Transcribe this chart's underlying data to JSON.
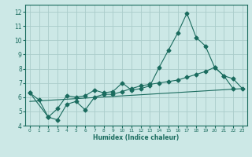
{
  "xlabel": "Humidex (Indice chaleur)",
  "bg_color": "#cce8e6",
  "grid_color": "#aaccca",
  "line_color": "#1a6b5e",
  "xlim": [
    -0.5,
    23.5
  ],
  "ylim": [
    4,
    12.5
  ],
  "yticks": [
    4,
    5,
    6,
    7,
    8,
    9,
    10,
    11,
    12
  ],
  "xticks": [
    0,
    1,
    2,
    3,
    4,
    5,
    6,
    7,
    8,
    9,
    10,
    11,
    12,
    13,
    14,
    15,
    16,
    17,
    18,
    19,
    20,
    21,
    22,
    23
  ],
  "series1_x": [
    0,
    1,
    2,
    3,
    4,
    5,
    6,
    7,
    8,
    9,
    10,
    11,
    12,
    13,
    14,
    15,
    16,
    17,
    18,
    19,
    20,
    21,
    22
  ],
  "series1_y": [
    6.3,
    5.8,
    4.6,
    5.2,
    6.1,
    6.0,
    6.1,
    6.5,
    6.3,
    6.4,
    7.0,
    6.5,
    6.6,
    6.8,
    8.1,
    9.3,
    10.5,
    11.9,
    10.2,
    9.6,
    8.1,
    7.5,
    6.6
  ],
  "series2_x": [
    0,
    2,
    3,
    4,
    5,
    6,
    7,
    8,
    9,
    10,
    11,
    12,
    13,
    14,
    15,
    16,
    17,
    18,
    19,
    20,
    21,
    22,
    23
  ],
  "series2_y": [
    6.3,
    4.6,
    4.4,
    5.5,
    5.7,
    5.1,
    6.0,
    6.2,
    6.2,
    6.4,
    6.6,
    6.8,
    6.9,
    7.0,
    7.1,
    7.2,
    7.4,
    7.6,
    7.8,
    8.1,
    7.5,
    7.3,
    6.6
  ],
  "series3_x": [
    0,
    23
  ],
  "series3_y": [
    5.7,
    6.6
  ]
}
